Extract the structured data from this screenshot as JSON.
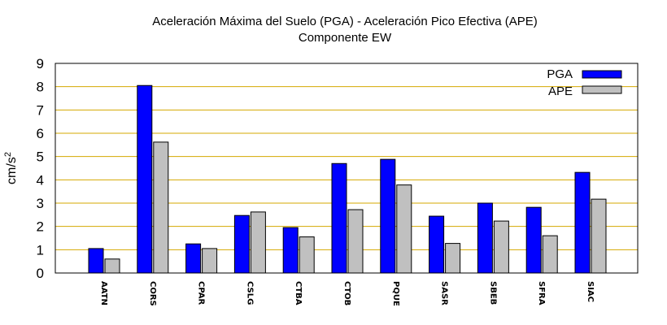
{
  "chart_data": {
    "type": "bar",
    "title": "Aceleración Máxima del Suelo (PGA) -  Aceleración Pico Efectiva (APE)",
    "subtitle": "Componente EW",
    "xlabel": "",
    "ylabel": "cm/s",
    "ylabel_superscript": "2",
    "ylim": [
      0,
      9
    ],
    "yticks": [
      "0",
      "1",
      "2",
      "3",
      "4",
      "5",
      "6",
      "7",
      "8",
      "9"
    ],
    "grid": true,
    "legend_position": "top-right",
    "categories": [
      "AATN",
      "CORS",
      "CPAR",
      "CSLG",
      "CTBA",
      "CTOB",
      "PQUE",
      "SASR",
      "SBEB",
      "SFRA",
      "SIAC"
    ],
    "series": [
      {
        "name": "PGA",
        "color": "#0000ff",
        "values": [
          1.05,
          8.05,
          1.25,
          2.47,
          1.95,
          4.7,
          4.88,
          2.44,
          3.0,
          2.82,
          4.32
        ]
      },
      {
        "name": "APE",
        "color": "#c0c0c0",
        "values": [
          0.6,
          5.62,
          1.05,
          2.62,
          1.55,
          2.72,
          3.78,
          1.27,
          2.23,
          1.6,
          3.17
        ]
      }
    ],
    "grid_color": "#d4a800"
  }
}
